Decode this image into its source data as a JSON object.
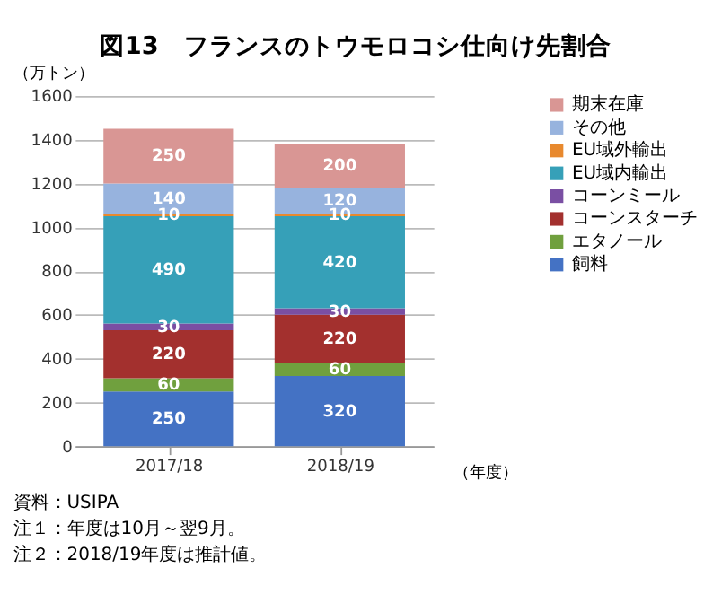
{
  "chart_data": {
    "type": "bar",
    "title": "図13　フランスのトウモロコシ仕向け先割合",
    "ylabel": "（万トン）",
    "xlabel": "（年度）",
    "categories": [
      "2017/18",
      "2018/19"
    ],
    "stacked": true,
    "series": [
      {
        "name": "飼料",
        "color": "#4472c4",
        "values": [
          250,
          320
        ]
      },
      {
        "name": "エタノール",
        "color": "#70a03e",
        "values": [
          60,
          60
        ]
      },
      {
        "name": "コーンスターチ",
        "color": "#a3302e",
        "values": [
          220,
          220
        ]
      },
      {
        "name": "コーンミール",
        "color": "#7a4fa3",
        "values": [
          30,
          30
        ]
      },
      {
        "name": "EU域内輸出",
        "color": "#36a0b8",
        "values": [
          490,
          420
        ]
      },
      {
        "name": "EU域外輸出",
        "color": "#e8892e",
        "values": [
          10,
          10
        ]
      },
      {
        "name": "その他",
        "color": "#97b3de",
        "values": [
          140,
          120
        ]
      },
      {
        "name": "期末在庫",
        "color": "#d99694",
        "values": [
          250,
          200
        ]
      }
    ],
    "ylim": [
      0,
      1600
    ],
    "yticks": [
      0,
      200,
      400,
      600,
      800,
      1000,
      1200,
      1400,
      1600
    ],
    "grid": "y",
    "legend": "right",
    "data_labels": true,
    "annotations": [
      "資料：USIPA",
      "注１：年度は10月～翌9月。",
      "注２：2018/19年度は推計値。"
    ]
  }
}
